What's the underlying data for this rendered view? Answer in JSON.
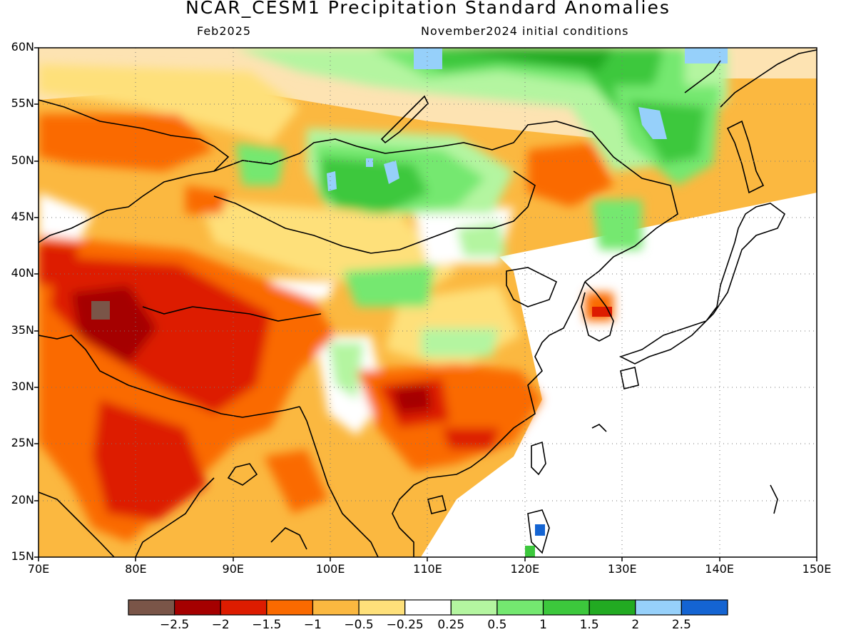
{
  "header": {
    "title": "NCAR_CESM1 Precipitation Standard Anomalies",
    "valid_month": "Feb2025",
    "init": "November2024 initial conditions"
  },
  "axes": {
    "lat_labels": [
      "60N",
      "55N",
      "50N",
      "45N",
      "40N",
      "35N",
      "30N",
      "25N",
      "20N",
      "15N"
    ],
    "lon_labels": [
      "70E",
      "80E",
      "90E",
      "100E",
      "110E",
      "120E",
      "130E",
      "140E",
      "150E"
    ],
    "lat_range": [
      15,
      60
    ],
    "lon_range": [
      70,
      150
    ]
  },
  "legend": {
    "labels": [
      "-2.5",
      "-2",
      "-1.5",
      "-1",
      "-0.5",
      "-0.25",
      "0.25",
      "0.5",
      "1",
      "1.5",
      "2",
      "2.5"
    ],
    "colors": [
      "#7a5548",
      "#a50000",
      "#dd1c00",
      "#fa6a00",
      "#fbb840",
      "#fee07a",
      "#ffffff",
      "#b4f5a0",
      "#74e870",
      "#3cc83c",
      "#22aa22",
      "#96d0fa",
      "#1464d2"
    ]
  }
}
